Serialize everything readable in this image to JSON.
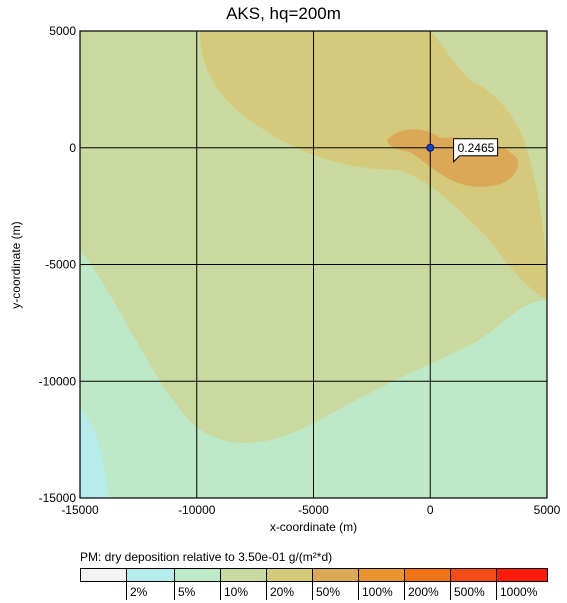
{
  "chart_data": {
    "type": "heatmap",
    "title": "AKS, hq=200m",
    "xlabel": "x-coordinate (m)",
    "ylabel": "y-coordinate (m)",
    "xlim": [
      -15000,
      5000
    ],
    "ylim": [
      -15000,
      5000
    ],
    "x_ticks": [
      "-15000",
      "-10000",
      "-5000",
      "0",
      "5000"
    ],
    "y_ticks": [
      "5000",
      "0",
      "-5000",
      "-10000",
      "-15000"
    ],
    "grid": true,
    "source_point": {
      "x": 0,
      "y": 0
    },
    "annotation": {
      "text": "0.2465",
      "x": 1000,
      "y": 0
    },
    "legend": {
      "title": "PM: dry deposition relative to 3.50e-01 g/(m²*d)",
      "classes": [
        {
          "color": "#f2f2f2",
          "label": ""
        },
        {
          "color": "#b6ecec",
          "label": "2%"
        },
        {
          "color": "#bee9c8",
          "label": "5%"
        },
        {
          "color": "#c9d9a0",
          "label": "10%"
        },
        {
          "color": "#d5c97b",
          "label": "20%"
        },
        {
          "color": "#dba857",
          "label": "50%"
        },
        {
          "color": "#e6952f",
          "label": "100%"
        },
        {
          "color": "#f07314",
          "label": "200%"
        },
        {
          "color": "#f44c18",
          "label": "500%"
        },
        {
          "color": "#ff1a0a",
          "label": "1000%"
        }
      ]
    },
    "regions": [
      {
        "class": "5%",
        "description": "lower-left and central light green zone"
      },
      {
        "class": "10%",
        "description": "broad band from upper-left to right"
      },
      {
        "class": "20%",
        "description": "upper central plume north and east of source"
      },
      {
        "class": "50%",
        "description": "small core east of source near annotation"
      },
      {
        "class": "2%",
        "description": "small patch at far lower-left corner"
      }
    ]
  }
}
